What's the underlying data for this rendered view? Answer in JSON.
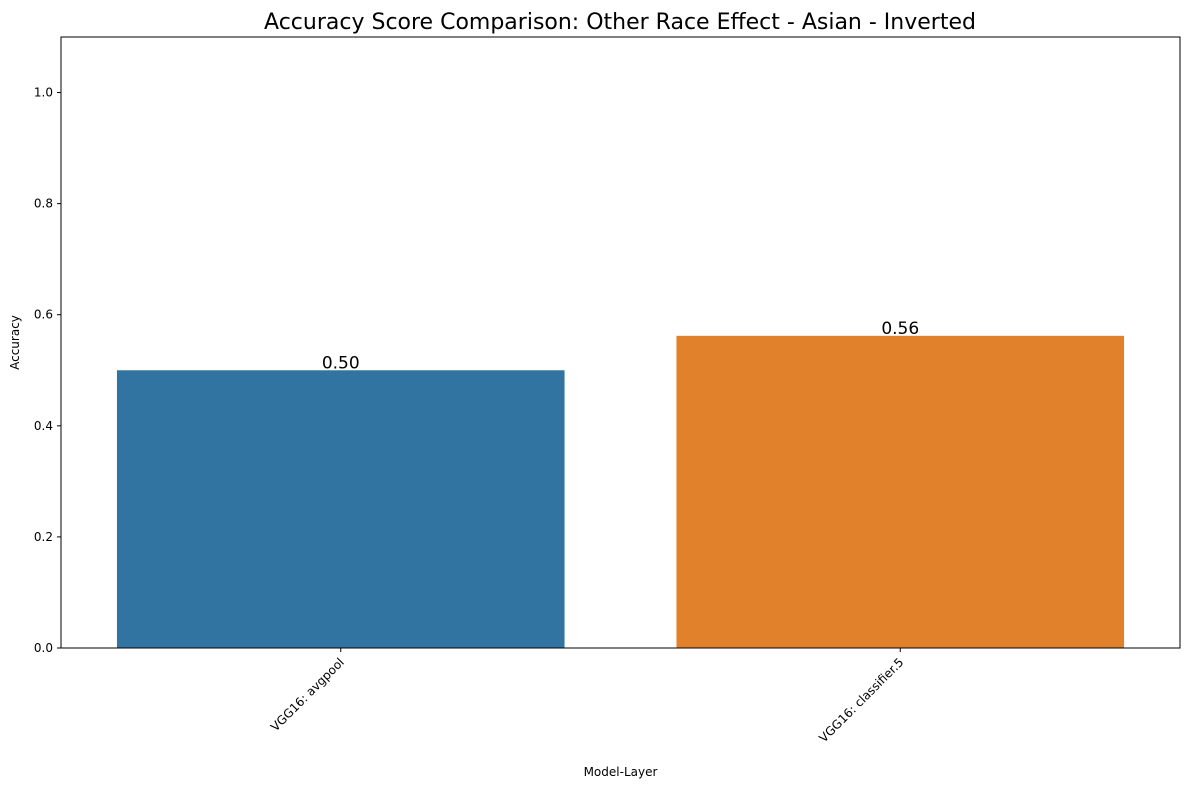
{
  "chart_data": {
    "type": "bar",
    "title": "Accuracy Score Comparison: Other Race Effect - Asian - Inverted",
    "xlabel": "Model-Layer",
    "ylabel": "Accuracy",
    "categories": [
      "VGG16: avgpool",
      "VGG16: classifier.5"
    ],
    "values": [
      0.5,
      0.562
    ],
    "value_labels": [
      "0.50",
      "0.56"
    ],
    "colors": [
      "#3274a1",
      "#e1812c"
    ],
    "ylim": [
      0,
      1.1
    ],
    "yticks": [
      0.0,
      0.2,
      0.4,
      0.6,
      0.8,
      1.0
    ],
    "ytick_labels": [
      "0.0",
      "0.2",
      "0.4",
      "0.6",
      "0.8",
      "1.0"
    ],
    "grid": false,
    "legend": "none"
  }
}
